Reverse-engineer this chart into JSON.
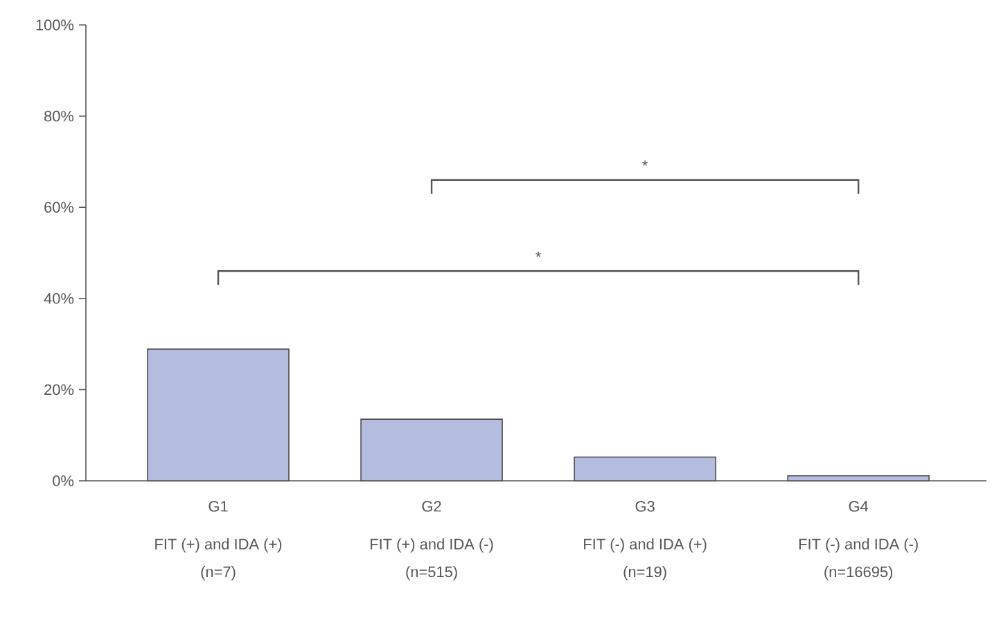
{
  "chart_data": {
    "type": "bar",
    "categories": [
      "G1",
      "G2",
      "G3",
      "G4"
    ],
    "values": [
      28.9,
      13.5,
      5.2,
      1.1
    ],
    "color": "#b4bde0",
    "ylim": [
      0,
      100
    ],
    "yticks": [
      {
        "value": 0,
        "label": "0%"
      },
      {
        "value": 20,
        "label": "20%"
      },
      {
        "value": 40,
        "label": "40%"
      },
      {
        "value": 60,
        "label": "60%"
      },
      {
        "value": 80,
        "label": "80%"
      },
      {
        "value": 100,
        "label": "100%"
      }
    ],
    "grid": false,
    "annotations": [
      "FIT (+) and IDA (+)",
      "(n=7)",
      "FIT (+) and IDA (-)",
      "(n=515)",
      "FIT (-) and IDA (+)",
      "(n=19)",
      "FIT (-) and IDA (-)",
      "(n=16695)",
      "*",
      "*"
    ]
  }
}
